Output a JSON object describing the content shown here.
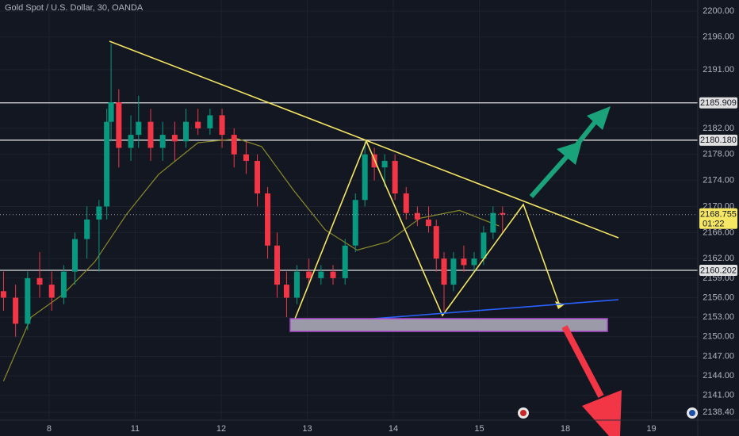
{
  "chart_data": {
    "type": "candlestick",
    "title": "Gold Spot / U.S. Dollar, 30, OANDA",
    "up_color": "#089981",
    "down_color": "#f23645",
    "grid": true,
    "xlim": [
      -0.571,
      7.539
    ],
    "xticks": [
      {
        "value": 0,
        "label": "8"
      },
      {
        "value": 1,
        "label": "11"
      },
      {
        "value": 2,
        "label": "12"
      },
      {
        "value": 3,
        "label": "13"
      },
      {
        "value": 4,
        "label": "14"
      },
      {
        "value": 5,
        "label": "15"
      },
      {
        "value": 6,
        "label": "18"
      },
      {
        "value": 7,
        "label": "19"
      }
    ],
    "ylim": [
      2137.2,
      2201.7
    ],
    "yticks": [
      {
        "value": 2200,
        "label": "2200.00"
      },
      {
        "value": 2196,
        "label": "2196.00"
      },
      {
        "value": 2191,
        "label": "2191.00"
      },
      {
        "value": 2182,
        "label": "2182.00"
      },
      {
        "value": 2178,
        "label": "2178.00"
      },
      {
        "value": 2174,
        "label": "2174.00"
      },
      {
        "value": 2170,
        "label": "2170.00"
      },
      {
        "value": 2166,
        "label": "2166.00"
      },
      {
        "value": 2162,
        "label": "2162.00"
      },
      {
        "value": 2159,
        "label": "2159.00"
      },
      {
        "value": 2156,
        "label": "2156.00"
      },
      {
        "value": 2153,
        "label": "2153.00"
      },
      {
        "value": 2150,
        "label": "2150.00"
      },
      {
        "value": 2147,
        "label": "2147.00"
      },
      {
        "value": 2144,
        "label": "2144.00"
      },
      {
        "value": 2141,
        "label": "2141.00"
      },
      {
        "value": 2138.4,
        "label": "2138.40"
      }
    ],
    "candles": {
      "x": [
        -0.53,
        -0.39,
        -0.25,
        -0.11,
        0.03,
        0.17,
        0.3,
        0.44,
        0.58,
        0.67,
        0.72,
        0.81,
        0.95,
        1.04,
        1.18,
        1.32,
        1.46,
        1.59,
        1.73,
        1.87,
        2.01,
        2.15,
        2.29,
        2.42,
        2.54,
        2.65,
        2.76,
        2.88,
        3.02,
        3.16,
        3.3,
        3.44,
        3.56,
        3.67,
        3.78,
        3.9,
        4.02,
        4.15,
        4.28,
        4.41,
        4.5,
        4.59,
        4.7,
        4.82,
        4.94,
        5.05,
        5.16,
        5.27
      ],
      "open": [
        2157,
        2156,
        2152,
        2159,
        2158,
        2156,
        2160,
        2165,
        2168,
        2170,
        2183,
        2186,
        2179,
        2181,
        2183,
        2179,
        2181,
        2180,
        2183,
        2182,
        2184,
        2181,
        2178,
        2177,
        2172,
        2164,
        2158,
        2156,
        2160,
        2159,
        2160,
        2159,
        2164,
        2171,
        2178,
        2176,
        2177,
        2172,
        2169,
        2168,
        2167,
        2162,
        2158,
        2162,
        2161,
        2162,
        2166,
        2169
      ],
      "high": [
        2160,
        2158,
        2160,
        2163,
        2160,
        2161,
        2166,
        2170,
        2171,
        2185,
        2195,
        2188,
        2184,
        2187,
        2185,
        2183,
        2183,
        2185,
        2185,
        2185,
        2185,
        2182,
        2180,
        2178,
        2173,
        2166,
        2160,
        2161,
        2162,
        2161,
        2161,
        2165,
        2172,
        2180,
        2179,
        2178,
        2178,
        2173,
        2170,
        2170,
        2168,
        2163,
        2163,
        2164,
        2163,
        2167,
        2170,
        2170
      ],
      "low": [
        2154,
        2150,
        2151,
        2156,
        2154,
        2155,
        2158,
        2162,
        2160,
        2168,
        2180,
        2176,
        2177,
        2179,
        2177,
        2177,
        2177,
        2179,
        2181,
        2181,
        2179,
        2176,
        2175,
        2170,
        2162,
        2156,
        2153,
        2155,
        2158,
        2158,
        2158,
        2158,
        2163,
        2170,
        2174,
        2173,
        2171,
        2168,
        2167,
        2166,
        2160,
        2154,
        2157,
        2160,
        2160,
        2161,
        2165,
        2166
      ],
      "close": [
        2156,
        2152,
        2159,
        2158,
        2156,
        2160,
        2165,
        2168,
        2170,
        2183,
        2186,
        2179,
        2181,
        2183,
        2179,
        2181,
        2180,
        2183,
        2182,
        2184,
        2181,
        2178,
        2177,
        2172,
        2164,
        2158,
        2156,
        2160,
        2159,
        2160,
        2159,
        2164,
        2171,
        2178,
        2176,
        2177,
        2172,
        2169,
        2168,
        2167,
        2162,
        2158,
        2162,
        2161,
        2162,
        2166,
        2169,
        2168.755
      ]
    },
    "moving_average": {
      "color": "#8a8a2a",
      "x": [
        -0.53,
        -0.21,
        0.17,
        0.53,
        0.9,
        1.27,
        1.73,
        2.19,
        2.47,
        2.84,
        3.21,
        3.58,
        3.94,
        4.31,
        4.77,
        5.23
      ],
      "values": [
        2143.2,
        2153,
        2156.6,
        2161.5,
        2168.8,
        2174.9,
        2179.8,
        2180.4,
        2179.2,
        2172.5,
        2166.4,
        2163.3,
        2164.6,
        2168.2,
        2169.4,
        2167
      ]
    },
    "levels": [
      {
        "value": 2185.909,
        "label": "2185.909"
      },
      {
        "value": 2180.18,
        "label": "2180.180"
      },
      {
        "value": 2160.202,
        "label": "2160.202"
      }
    ],
    "last_price": 2168.755,
    "countdown": "01:22"
  }
}
